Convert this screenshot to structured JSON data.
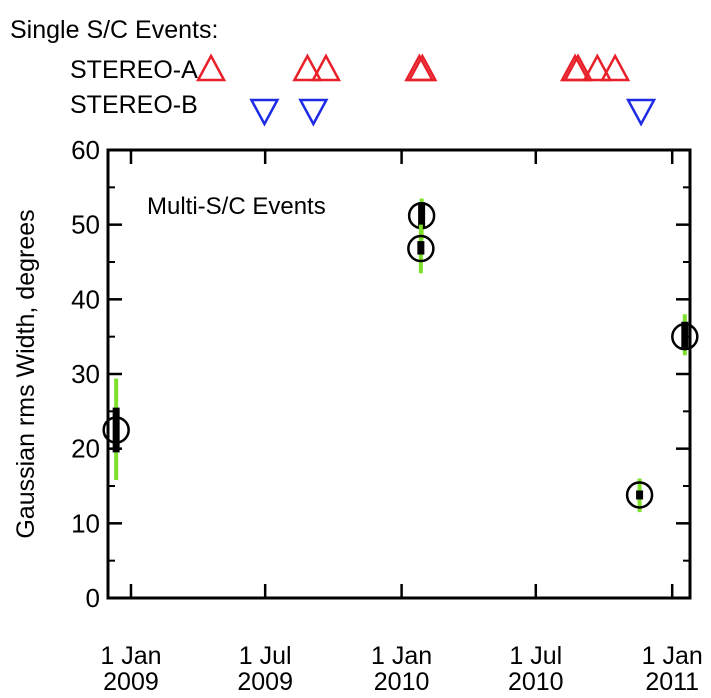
{
  "chart_data": {
    "type": "scatter",
    "title": "",
    "xlabel": "",
    "ylabel": "Gaussian rms Width, degrees",
    "ylim": [
      0,
      60
    ],
    "xlim": [
      "2008-12-01",
      "2011-01-25"
    ],
    "yticks": [
      0,
      10,
      20,
      30,
      40,
      50,
      60
    ],
    "xticks": [
      {
        "date": "2009-01-01",
        "line1": "1 Jan",
        "line2": "2009"
      },
      {
        "date": "2009-07-01",
        "line1": "1 Jul",
        "line2": "2009"
      },
      {
        "date": "2010-01-01",
        "line1": "1 Jan",
        "line2": "2010"
      },
      {
        "date": "2010-07-01",
        "line1": "1 Jul",
        "line2": "2010"
      },
      {
        "date": "2011-01-01",
        "line1": "1 Jan",
        "line2": "2011"
      }
    ],
    "grid": false,
    "annotation": "Multi-S/C Events",
    "single_events_title": "Single S/C Events:",
    "series": [
      {
        "name": "Multi-S/C Events",
        "marker": "circle",
        "points": [
          {
            "date": "2008-12-12",
            "y": 22.5,
            "err_inner": [
              19.5,
              25.5
            ],
            "err_outer": [
              15.8,
              29.4
            ]
          },
          {
            "date": "2010-01-28",
            "y": 51.2,
            "err_inner": [
              49.5,
              53.0
            ],
            "err_outer": [
              48.0,
              53.5
            ]
          },
          {
            "date": "2010-01-27",
            "y": 46.8,
            "err_inner": [
              46.0,
              47.8
            ],
            "err_outer": [
              43.5,
              50.0
            ]
          },
          {
            "date": "2010-11-18",
            "y": 13.8,
            "err_inner": [
              13.2,
              14.4
            ],
            "err_outer": [
              11.5,
              16.0
            ]
          },
          {
            "date": "2011-01-18",
            "y": 35.0,
            "err_inner": [
              33.5,
              37.0
            ],
            "err_outer": [
              32.5,
              38.0
            ]
          }
        ]
      }
    ],
    "single_events": [
      {
        "name": "STEREO-A",
        "color": "#e8202a",
        "marker": "triangle-up",
        "dates": [
          "2009-04-19",
          "2009-08-27",
          "2009-09-21",
          "2010-01-25",
          "2010-01-29",
          "2010-08-23",
          "2010-08-27",
          "2010-09-22",
          "2010-10-16"
        ]
      },
      {
        "name": "STEREO-B",
        "color": "#1e2be6",
        "marker": "triangle-down",
        "dates": [
          "2009-06-30",
          "2009-09-04",
          "2010-11-20"
        ]
      }
    ]
  }
}
